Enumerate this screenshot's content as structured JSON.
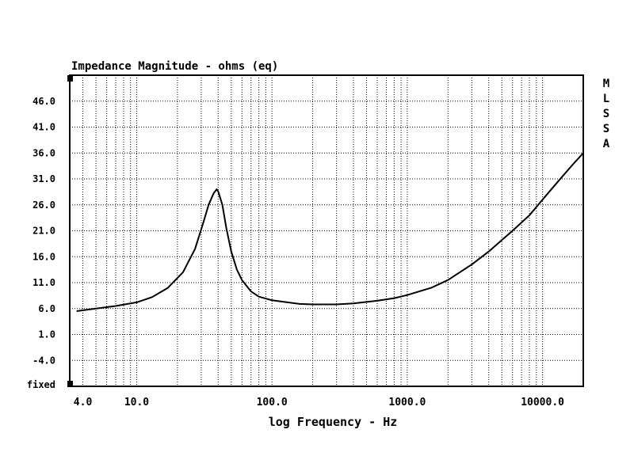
{
  "chart_data": {
    "type": "line",
    "title": "Impedance Magnitude - ohms (eq)",
    "xlabel": "log Frequency - Hz",
    "ylabel": "",
    "x_scale": "log",
    "xlim": [
      3.2,
      20000
    ],
    "ylim": [
      -9,
      51
    ],
    "y_ticks": [
      46.0,
      41.0,
      36.0,
      31.0,
      26.0,
      21.0,
      16.0,
      11.0,
      6.0,
      1.0,
      -4.0
    ],
    "y_tick_labels": [
      "46.0",
      "41.0",
      "36.0",
      "31.0",
      "26.0",
      "21.0",
      "16.0",
      "11.0",
      "6.0",
      "1.0",
      "-4.0"
    ],
    "y_bottom_label": "fixed",
    "x_tick_values": [
      4,
      10,
      100,
      1000,
      10000
    ],
    "x_tick_labels": [
      "4.0",
      "10.0",
      "100.0",
      "1000.0",
      "10000.0"
    ],
    "side_label_letters": [
      "M",
      "L",
      "S",
      "S",
      "A"
    ],
    "grid": true,
    "line_color": "#000000",
    "series": [
      {
        "x": [
          3.6,
          5,
          7,
          10,
          13,
          17,
          22,
          27,
          31,
          34,
          37,
          39,
          40,
          43,
          46,
          50,
          55,
          60,
          70,
          80,
          100,
          130,
          160,
          200,
          300,
          400,
          600,
          800,
          1000,
          1500,
          2000,
          3000,
          4000,
          6000,
          8000,
          10000,
          13000,
          17000,
          20000
        ],
        "y": [
          5.5,
          6.0,
          6.5,
          7.2,
          8.2,
          10.0,
          13.0,
          17.5,
          22.5,
          26.0,
          28.2,
          29.0,
          28.6,
          26.0,
          21.5,
          17.0,
          13.5,
          11.5,
          9.3,
          8.3,
          7.6,
          7.2,
          6.9,
          6.8,
          6.8,
          7.0,
          7.5,
          8.0,
          8.6,
          10.0,
          11.5,
          14.5,
          17.0,
          21.0,
          24.0,
          27.0,
          30.5,
          34.0,
          36.0
        ]
      }
    ]
  }
}
